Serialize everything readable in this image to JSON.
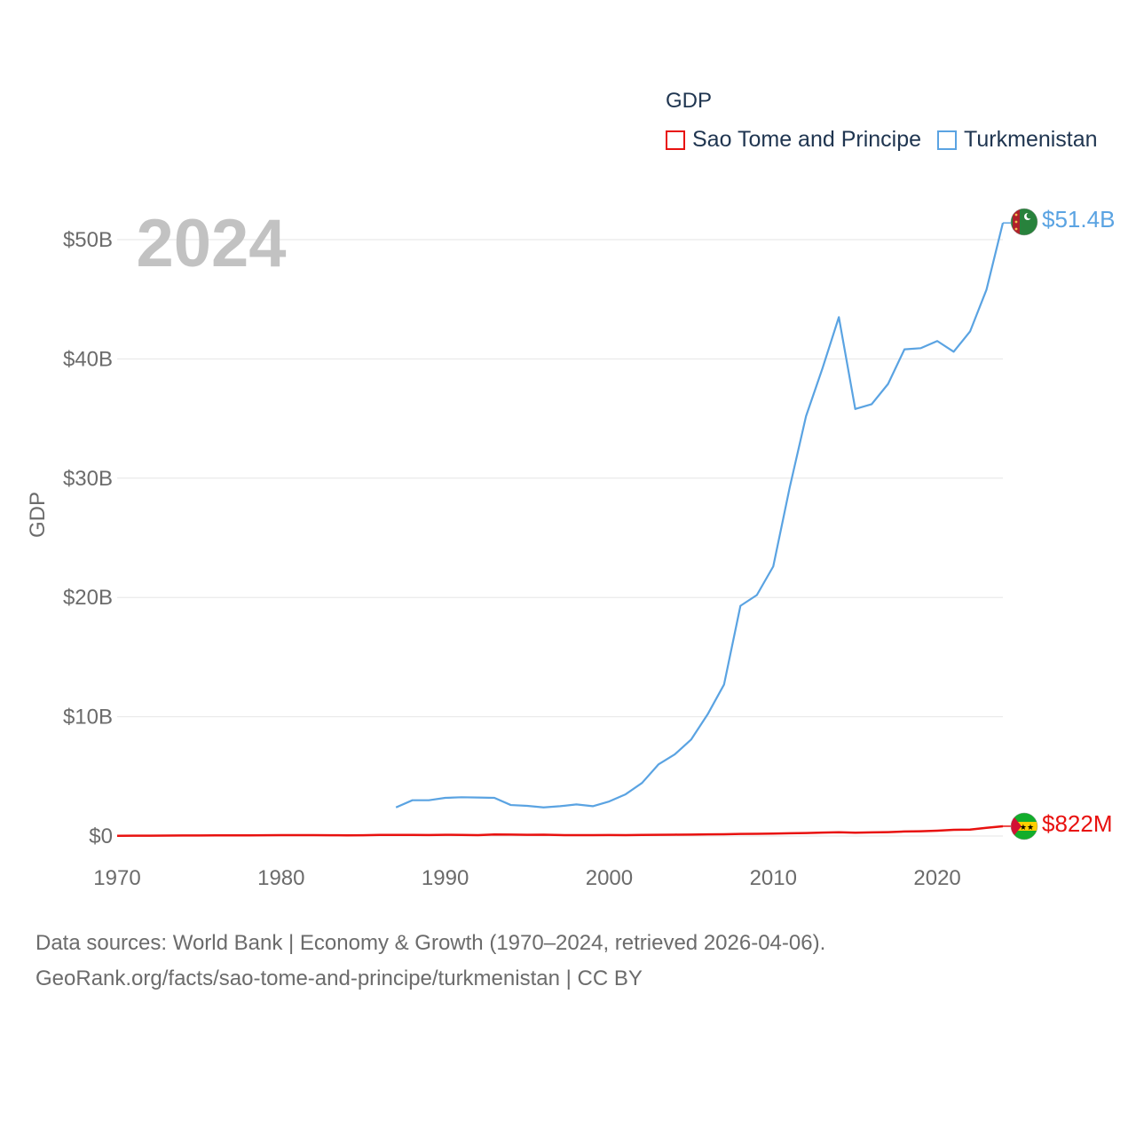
{
  "chart_data": {
    "type": "line",
    "title": "",
    "legend_title": "GDP",
    "current_year": "2024",
    "ylabel": "GDP",
    "xlabel": "",
    "xlim": [
      1970,
      2024
    ],
    "ylim": [
      0,
      50000000000
    ],
    "x_ticks": [
      1970,
      1980,
      1990,
      2000,
      2010,
      2020
    ],
    "x_tick_labels": [
      "1970",
      "1980",
      "1990",
      "2000",
      "2010",
      "2020"
    ],
    "y_ticks": [
      0,
      10000000000,
      20000000000,
      30000000000,
      40000000000,
      50000000000
    ],
    "y_tick_labels": [
      "$0",
      "$10B",
      "$20B",
      "$30B",
      "$40B",
      "$50B"
    ],
    "grid": true,
    "series": [
      {
        "name": "Sao Tome and Principe",
        "color": "#e8110f",
        "end_label": "$822M",
        "x": [
          1970,
          1971,
          1972,
          1973,
          1974,
          1975,
          1976,
          1977,
          1978,
          1979,
          1980,
          1981,
          1982,
          1983,
          1984,
          1985,
          1986,
          1987,
          1988,
          1989,
          1990,
          1991,
          1992,
          1993,
          1994,
          1995,
          1996,
          1997,
          1998,
          1999,
          2000,
          2001,
          2002,
          2003,
          2004,
          2005,
          2006,
          2007,
          2008,
          2009,
          2010,
          2011,
          2012,
          2013,
          2014,
          2015,
          2016,
          2017,
          2018,
          2019,
          2020,
          2021,
          2022,
          2023,
          2024
        ],
        "values": [
          20000000,
          25000000,
          30000000,
          38000000,
          45000000,
          50000000,
          52000000,
          55000000,
          60000000,
          65000000,
          70000000,
          72000000,
          70000000,
          65000000,
          60000000,
          62000000,
          90000000,
          95000000,
          90000000,
          85000000,
          100000000,
          95000000,
          70000000,
          130000000,
          125000000,
          100000000,
          110000000,
          80000000,
          70000000,
          75000000,
          80000000,
          75000000,
          95000000,
          105000000,
          115000000,
          125000000,
          140000000,
          150000000,
          180000000,
          190000000,
          200000000,
          230000000,
          250000000,
          290000000,
          320000000,
          280000000,
          310000000,
          330000000,
          380000000,
          400000000,
          450000000,
          520000000,
          540000000,
          690000000,
          822000000
        ]
      },
      {
        "name": "Turkmenistan",
        "color": "#5aa3e2",
        "end_label": "$51.4B",
        "x": [
          1987,
          1988,
          1989,
          1990,
          1991,
          1992,
          1993,
          1994,
          1995,
          1996,
          1997,
          1998,
          1999,
          2000,
          2001,
          2002,
          2003,
          2004,
          2005,
          2006,
          2007,
          2008,
          2009,
          2010,
          2011,
          2012,
          2013,
          2014,
          2015,
          2016,
          2017,
          2018,
          2019,
          2020,
          2021,
          2022,
          2023,
          2024
        ],
        "values": [
          2400000000,
          3000000000,
          3000000000,
          3200000000,
          3250000000,
          3230000000,
          3200000000,
          2600000000,
          2530000000,
          2400000000,
          2500000000,
          2650000000,
          2500000000,
          2900000000,
          3500000000,
          4450000000,
          6000000000,
          6850000000,
          8100000000,
          10200000000,
          12700000000,
          19300000000,
          20200000000,
          22600000000,
          29200000000,
          35200000000,
          39200000000,
          43500000000,
          35800000000,
          36200000000,
          37900000000,
          40800000000,
          40900000000,
          41500000000,
          40600000000,
          42300000000,
          45800000000,
          51400000000
        ]
      }
    ]
  },
  "source": {
    "line1": "Data sources: World Bank | Economy & Growth (1970–2024, retrieved 2026-04-06).",
    "line2": "GeoRank.org/facts/sao-tome-and-principe/turkmenistan | CC BY"
  }
}
